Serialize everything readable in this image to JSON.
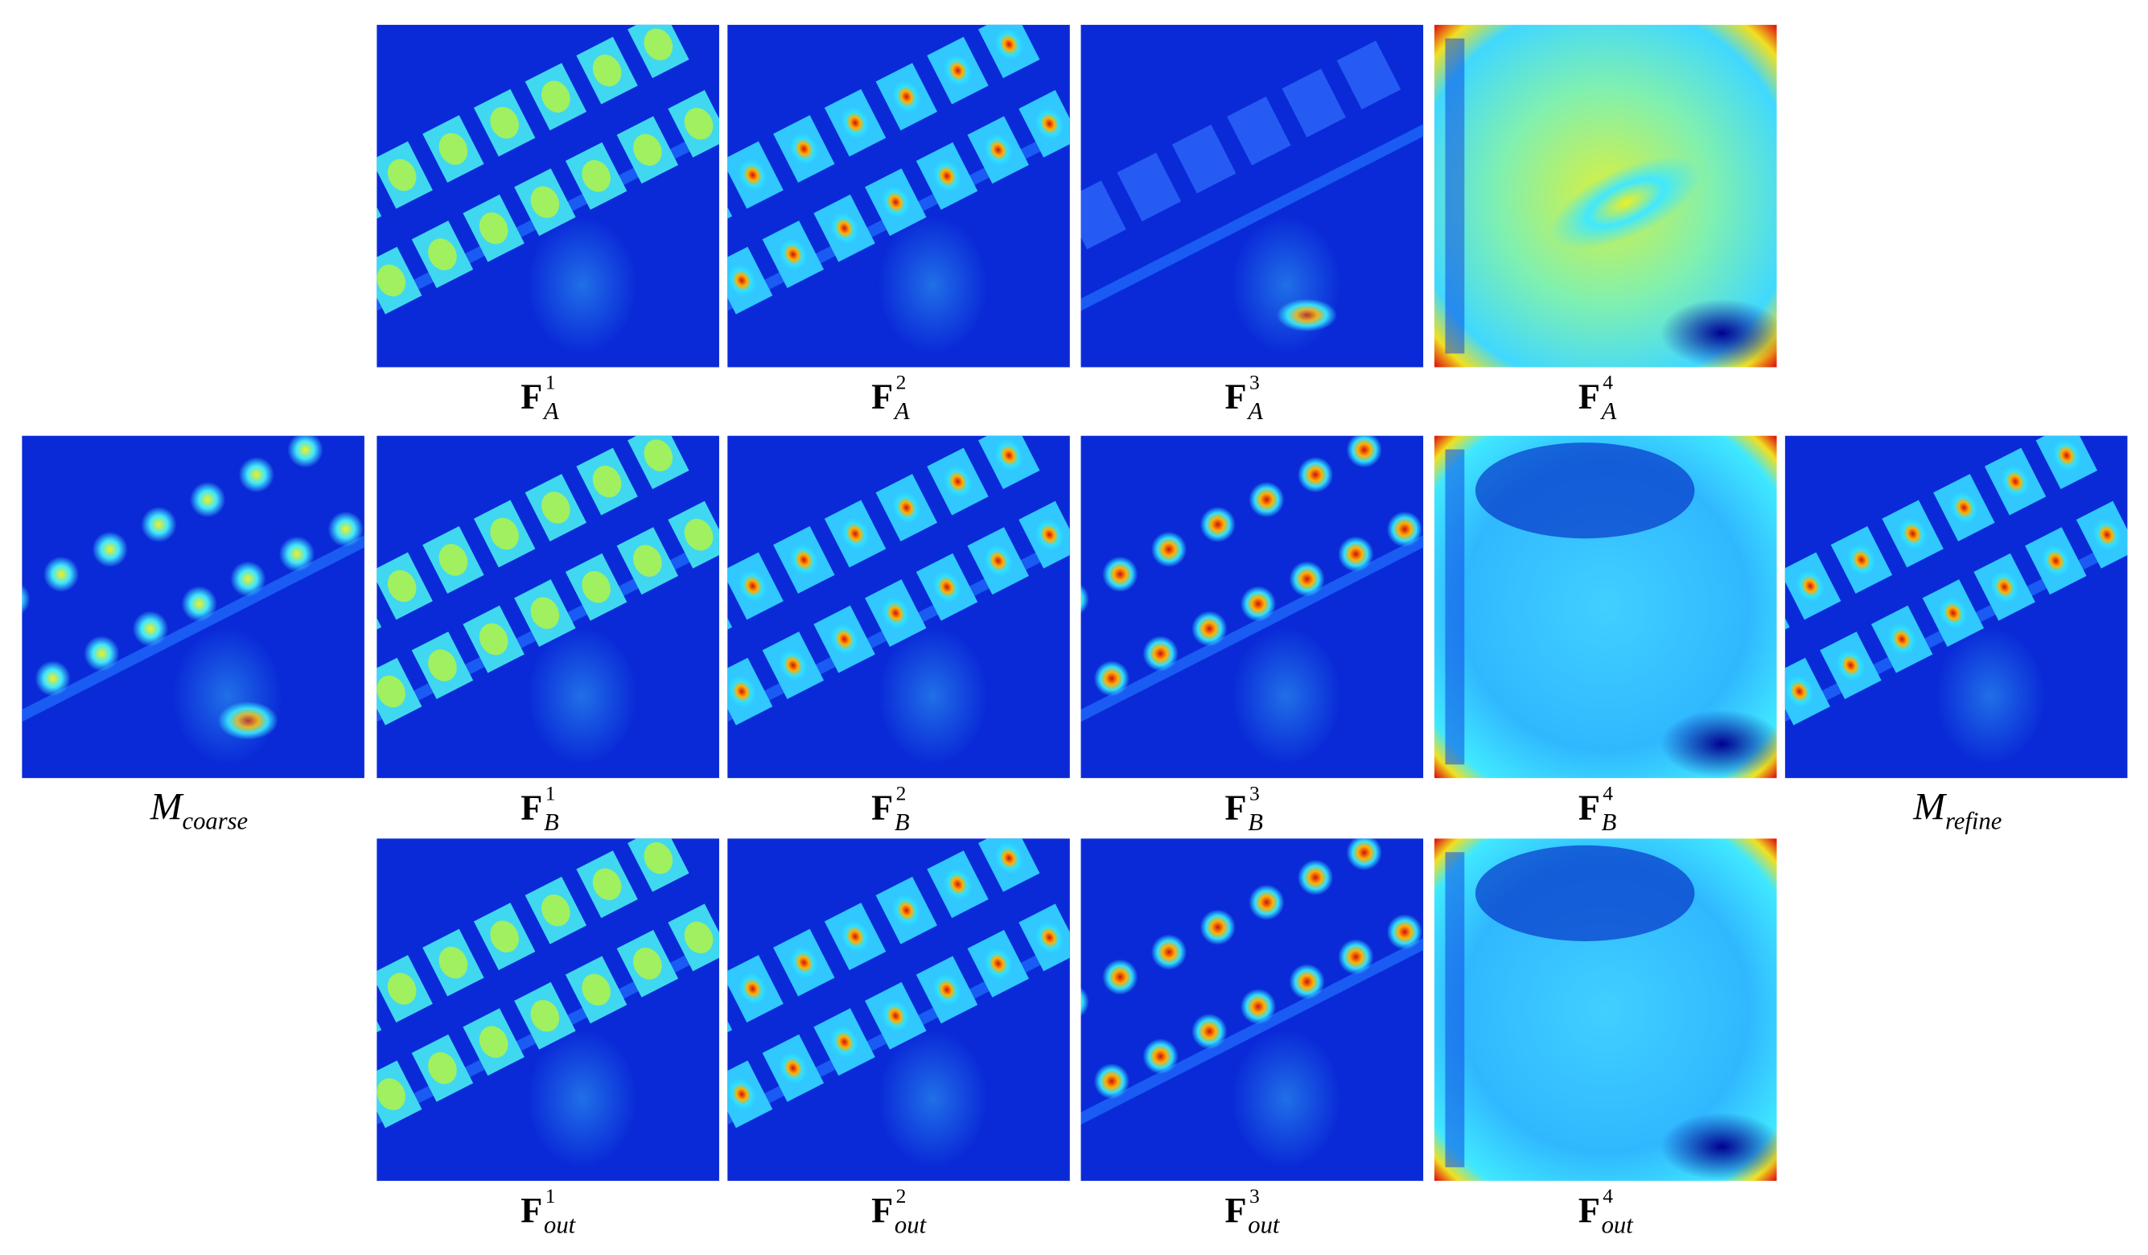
{
  "rows": [
    {
      "panels": [
        {
          "label": {
            "base": "F",
            "sub": "A",
            "sup": "1"
          }
        },
        {
          "label": {
            "base": "F",
            "sub": "A",
            "sup": "2"
          }
        },
        {
          "label": {
            "base": "F",
            "sub": "A",
            "sup": "3"
          }
        },
        {
          "label": {
            "base": "F",
            "sub": "A",
            "sup": "4"
          }
        }
      ]
    },
    {
      "panels": [
        {
          "label": {
            "base": "M",
            "sub": "coarse"
          }
        },
        {
          "label": {
            "base": "F",
            "sub": "B",
            "sup": "1"
          }
        },
        {
          "label": {
            "base": "F",
            "sub": "B",
            "sup": "2"
          }
        },
        {
          "label": {
            "base": "F",
            "sub": "B",
            "sup": "3"
          }
        },
        {
          "label": {
            "base": "F",
            "sub": "B",
            "sup": "4"
          }
        },
        {
          "label": {
            "base": "M",
            "sub": "refine"
          }
        }
      ]
    },
    {
      "panels": [
        {
          "label": {
            "base": "F",
            "sub": "out",
            "sup": "1"
          }
        },
        {
          "label": {
            "base": "F",
            "sub": "out",
            "sup": "2"
          }
        },
        {
          "label": {
            "base": "F",
            "sub": "out",
            "sup": "3"
          }
        },
        {
          "label": {
            "base": "F",
            "sub": "out",
            "sup": "4"
          }
        }
      ]
    }
  ]
}
